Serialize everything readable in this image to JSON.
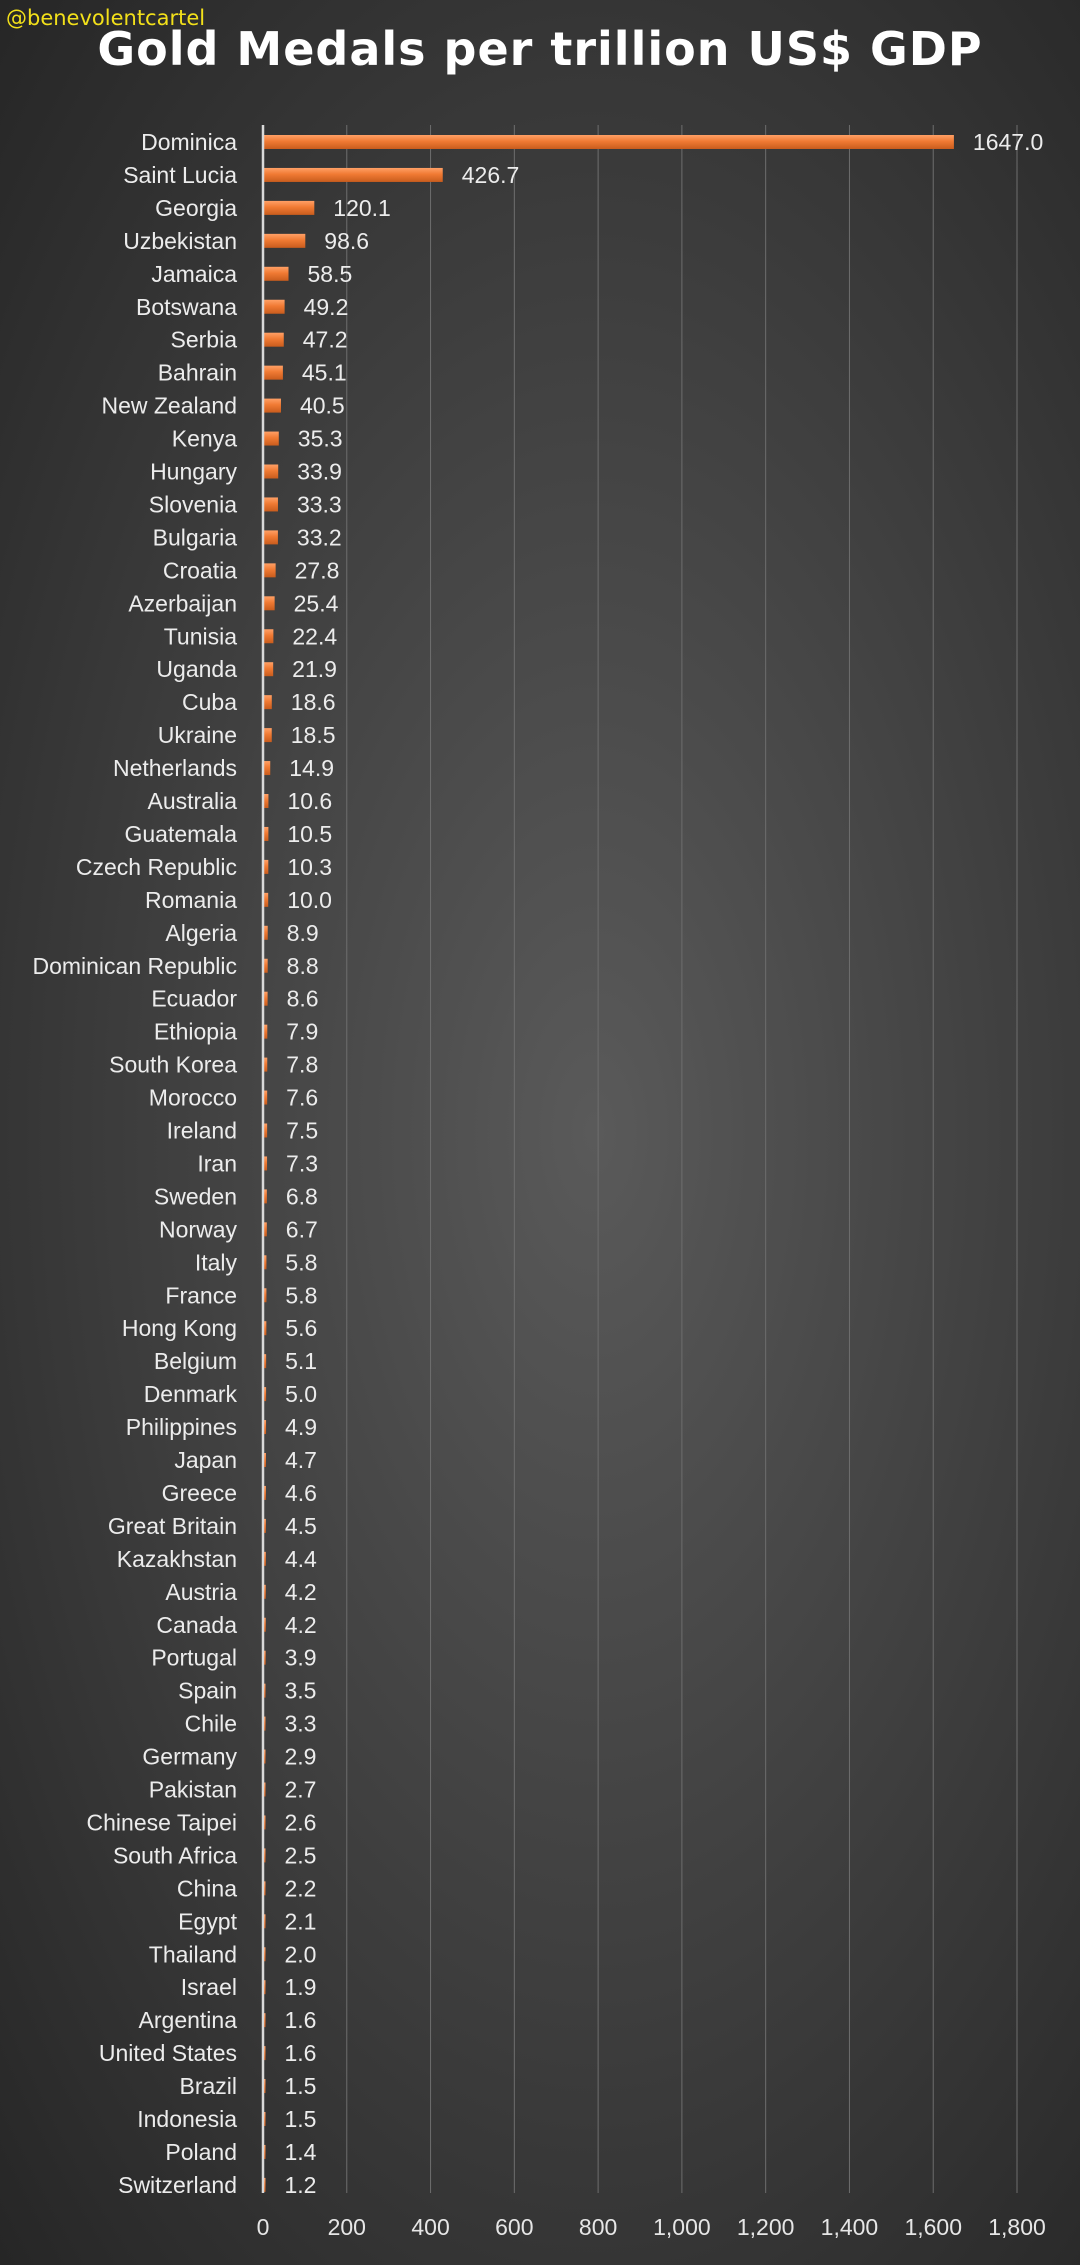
{
  "watermark": "@benevolentcartel",
  "chart_data": {
    "type": "bar",
    "orientation": "horizontal",
    "title": "Gold Medals per trillion US$ GDP",
    "xlim": [
      0,
      1800
    ],
    "x_ticks": [
      0,
      200,
      400,
      600,
      800,
      1000,
      1200,
      1400,
      1600,
      1800
    ],
    "x_tick_labels": [
      "0",
      "200",
      "400",
      "600",
      "800",
      "1,000",
      "1,200",
      "1,400",
      "1,600",
      "1,800"
    ],
    "grid": "vertical",
    "bar_color": "#ee7a35",
    "categories": [
      "Dominica",
      "Saint Lucia",
      "Georgia",
      "Uzbekistan",
      "Jamaica",
      "Botswana",
      "Serbia",
      "Bahrain",
      "New Zealand",
      "Kenya",
      "Hungary",
      "Slovenia",
      "Bulgaria",
      "Croatia",
      "Azerbaijan",
      "Tunisia",
      "Uganda",
      "Cuba",
      "Ukraine",
      "Netherlands",
      "Australia",
      "Guatemala",
      "Czech Republic",
      "Romania",
      "Algeria",
      "Dominican Republic",
      "Ecuador",
      "Ethiopia",
      "South Korea",
      "Morocco",
      "Ireland",
      "Iran",
      "Sweden",
      "Norway",
      "Italy",
      "France",
      "Hong Kong",
      "Belgium",
      "Denmark",
      "Philippines",
      "Japan",
      "Greece",
      "Great Britain",
      "Kazakhstan",
      "Austria",
      "Canada",
      "Portugal",
      "Spain",
      "Chile",
      "Germany",
      "Pakistan",
      "Chinese Taipei",
      "South Africa",
      "China",
      "Egypt",
      "Thailand",
      "Israel",
      "Argentina",
      "United States",
      "Brazil",
      "Indonesia",
      "Poland",
      "Switzerland"
    ],
    "values": [
      1647.0,
      426.7,
      120.1,
      98.6,
      58.5,
      49.2,
      47.2,
      45.1,
      40.5,
      35.3,
      33.9,
      33.3,
      33.2,
      27.8,
      25.4,
      22.4,
      21.9,
      18.6,
      18.5,
      14.9,
      10.6,
      10.5,
      10.3,
      10.0,
      8.9,
      8.8,
      8.6,
      7.9,
      7.8,
      7.6,
      7.5,
      7.3,
      6.8,
      6.7,
      5.8,
      5.8,
      5.6,
      5.1,
      5.0,
      4.9,
      4.7,
      4.6,
      4.5,
      4.4,
      4.2,
      4.2,
      3.9,
      3.5,
      3.3,
      2.9,
      2.7,
      2.6,
      2.5,
      2.2,
      2.1,
      2.0,
      1.9,
      1.6,
      1.6,
      1.5,
      1.5,
      1.4,
      1.2
    ],
    "value_labels": [
      "1647.0",
      "426.7",
      "120.1",
      "98.6",
      "58.5",
      "49.2",
      "47.2",
      "45.1",
      "40.5",
      "35.3",
      "33.9",
      "33.3",
      "33.2",
      "27.8",
      "25.4",
      "22.4",
      "21.9",
      "18.6",
      "18.5",
      "14.9",
      "10.6",
      "10.5",
      "10.3",
      "10.0",
      "8.9",
      "8.8",
      "8.6",
      "7.9",
      "7.8",
      "7.6",
      "7.5",
      "7.3",
      "6.8",
      "6.7",
      "5.8",
      "5.8",
      "5.6",
      "5.1",
      "5.0",
      "4.9",
      "4.7",
      "4.6",
      "4.5",
      "4.4",
      "4.2",
      "4.2",
      "3.9",
      "3.5",
      "3.3",
      "2.9",
      "2.7",
      "2.6",
      "2.5",
      "2.2",
      "2.1",
      "2.0",
      "1.9",
      "1.6",
      "1.6",
      "1.5",
      "1.5",
      "1.4",
      "1.2"
    ]
  }
}
